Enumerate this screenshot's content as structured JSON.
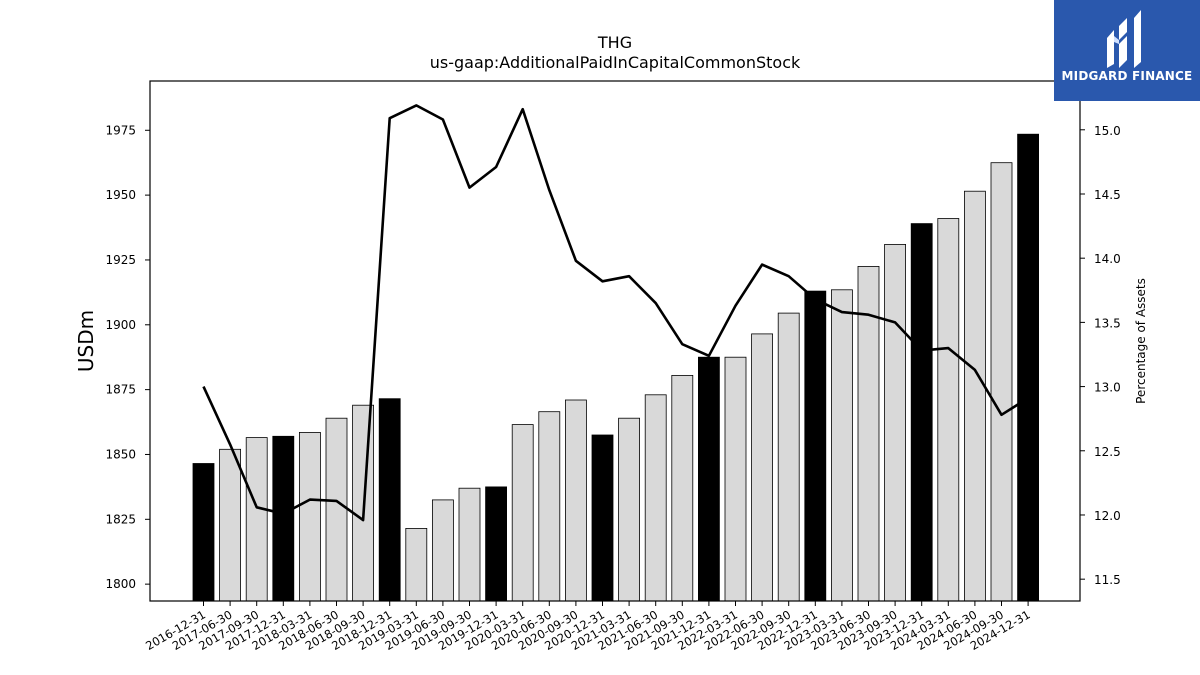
{
  "chart_data": {
    "type": "bar",
    "title": "THG",
    "subtitle": "us-gaap:AdditionalPaidInCapitalCommonStock",
    "ylabel": "USDm",
    "y2label": "Percentage of Assets",
    "categories": [
      "2016-12-31",
      "2017-06-30",
      "2017-09-30",
      "2017-12-31",
      "2018-03-31",
      "2018-06-30",
      "2018-09-30",
      "2018-12-31",
      "2019-03-31",
      "2019-06-30",
      "2019-09-30",
      "2019-12-31",
      "2020-03-31",
      "2020-06-30",
      "2020-09-30",
      "2020-12-31",
      "2021-03-31",
      "2021-06-30",
      "2021-09-30",
      "2021-12-31",
      "2022-03-31",
      "2022-06-30",
      "2022-09-30",
      "2022-12-31",
      "2023-03-31",
      "2023-06-30",
      "2023-09-30",
      "2023-12-31",
      "2024-03-31",
      "2024-06-30",
      "2024-09-30",
      "2024-12-31"
    ],
    "values": [
      1846.5,
      1852,
      1856.5,
      1857,
      1858.5,
      1864,
      1869,
      1871.5,
      1821.5,
      1832.5,
      1837,
      1837.5,
      1861.5,
      1866.5,
      1871,
      1857.5,
      1864,
      1873,
      1880.5,
      1887.5,
      1887.5,
      1896.5,
      1904.5,
      1913,
      1913.5,
      1922.5,
      1931,
      1939,
      1941,
      1951.5,
      1962.5,
      1973.5
    ],
    "highlight": [
      true,
      false,
      false,
      true,
      false,
      false,
      false,
      true,
      false,
      false,
      false,
      true,
      false,
      false,
      false,
      true,
      false,
      false,
      false,
      true,
      false,
      false,
      false,
      true,
      false,
      false,
      false,
      true,
      false,
      false,
      false,
      true
    ],
    "series2": [
      13.0,
      12.55,
      12.06,
      12.01,
      12.12,
      12.11,
      11.96,
      15.09,
      15.19,
      15.08,
      14.55,
      14.71,
      15.16,
      14.53,
      13.98,
      13.82,
      13.86,
      13.65,
      13.33,
      13.24,
      13.63,
      13.95,
      13.86,
      13.68,
      13.58,
      13.56,
      13.5,
      13.28,
      13.3,
      13.13,
      12.78,
      12.91
    ],
    "ylim": [
      1793.5,
      1994
    ],
    "y2lim": [
      11.33,
      15.38
    ],
    "yticks": [
      1800,
      1825,
      1850,
      1875,
      1900,
      1925,
      1950,
      1975
    ],
    "y2ticks": [
      11.5,
      12.0,
      12.5,
      13.0,
      13.5,
      14.0,
      14.5,
      15.0
    ],
    "y2tick_labels": [
      "11.5",
      "12.0",
      "12.5",
      "13.0",
      "13.5",
      "14.0",
      "14.5",
      "15.0"
    ],
    "colors": {
      "highlight": "#000000",
      "normal": "#d9d9d9",
      "edge": "#000000",
      "line": "#000000"
    },
    "grid": false
  },
  "logo": {
    "text": "MIDGARD FINANCE",
    "bg": "#2a58ad"
  }
}
